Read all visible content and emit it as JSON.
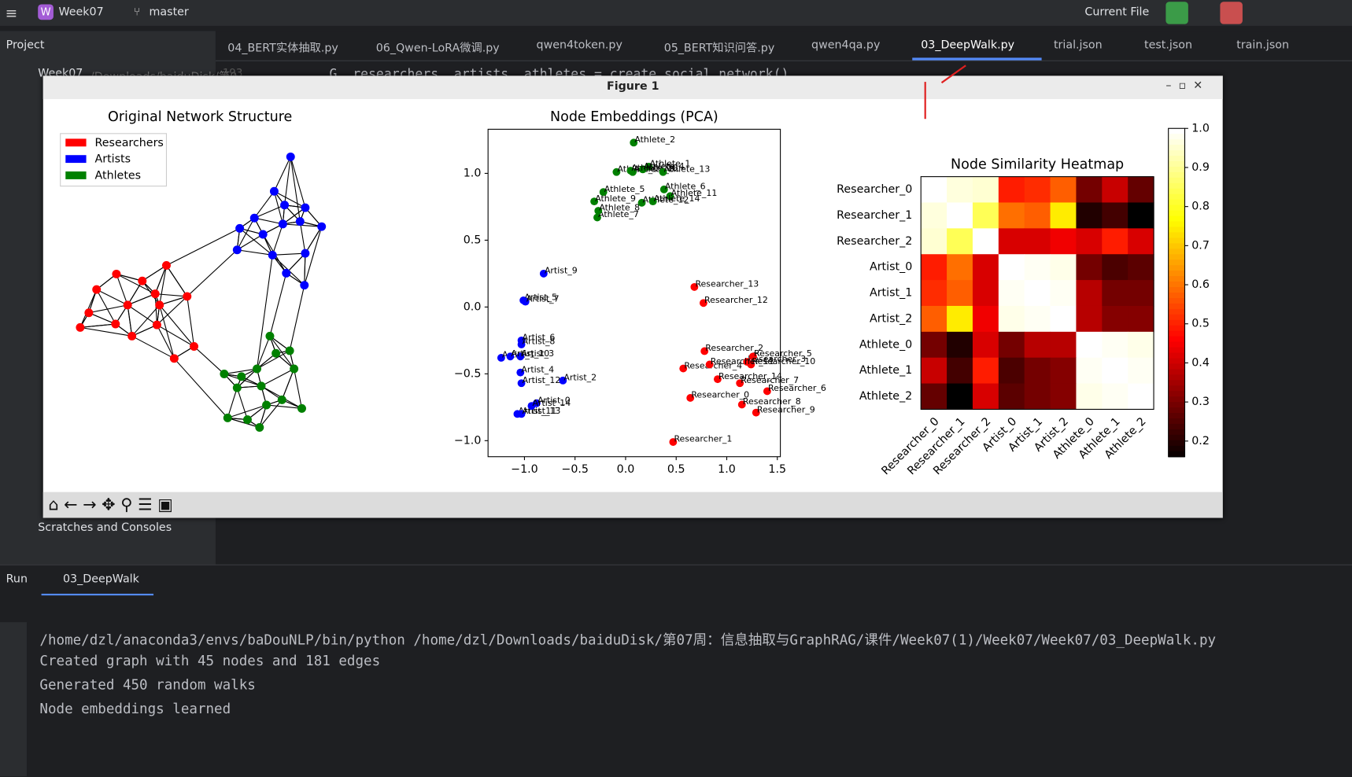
{
  "toolbar": {
    "project": "Week07",
    "branch": "master",
    "run_config": "Current File"
  },
  "tabs": [
    "04_BERT实体抽取.py",
    "06_Qwen-LoRA微调.py",
    "qwen4token.py",
    "05_BERT知识问答.py",
    "qwen4qa.py",
    "03_DeepWalk.py",
    "trial.json",
    "test.json",
    "train.json"
  ],
  "project_panel": {
    "title": "Project",
    "root": "Week07",
    "root_path": "~/Downloads/baiduDisk/第0",
    "scratches": "Scratches and Consoles"
  },
  "editor": {
    "line_number": "193",
    "code": "G, researchers, artists, athletes = create_social_network()"
  },
  "figure_window": {
    "title": "Figure 1"
  },
  "run_panel": {
    "title": "Run",
    "tab": "03_DeepWalk",
    "lines": [
      "/home/dzl/anaconda3/envs/baDouNLP/bin/python /home/dzl/Downloads/baiduDisk/第07周：信息抽取与GraphRAG/课件/Week07(1)/Week07/Week07/03_DeepWalk.py",
      "Created graph with 45 nodes and 181 edges",
      "Generated 450 random walks",
      "Node embeddings learned"
    ]
  },
  "chart_data": [
    {
      "type": "network",
      "title": "Original Network Structure",
      "series": [
        {
          "name": "Researchers",
          "color": "#ff0000"
        },
        {
          "name": "Artists",
          "color": "#0000ff"
        },
        {
          "name": "Athletes",
          "color": "#008000"
        }
      ]
    },
    {
      "type": "scatter",
      "title": "Node Embeddings (PCA)",
      "xlim": [
        -1.36,
        1.53
      ],
      "ylim": [
        -1.12,
        1.33
      ],
      "xticks": [
        {
          "value": -1,
          "label": "−1.0"
        },
        {
          "value": -0.5,
          "label": "−0.5"
        },
        {
          "value": 0,
          "label": "0.0"
        },
        {
          "value": 0.5,
          "label": "0.5"
        },
        {
          "value": 1,
          "label": "1.0"
        },
        {
          "value": 1.5,
          "label": "1.5"
        }
      ],
      "yticks": [
        {
          "value": -1,
          "label": "−1.0"
        },
        {
          "value": -0.5,
          "label": "−0.5"
        },
        {
          "value": 0,
          "label": "0.0"
        },
        {
          "value": 0.5,
          "label": "0.5"
        },
        {
          "value": 1,
          "label": "1.0"
        }
      ],
      "series": [
        {
          "name": "Researchers",
          "color": "#ff0000",
          "labels": [
            "Researcher_0",
            "Researcher_1",
            "Researcher_2",
            "Researcher_3",
            "Researcher_4",
            "Researcher_5",
            "Researcher_6",
            "Researcher_7",
            "Researcher_8",
            "Researcher_9",
            "Researcher_10",
            "Researcher_11",
            "Researcher_12",
            "Researcher_13",
            "Researcher_14"
          ],
          "x": [
            0.64,
            0.47,
            0.78,
            1.2,
            0.57,
            1.26,
            1.4,
            1.13,
            1.15,
            1.29,
            1.24,
            0.83,
            0.77,
            0.68,
            0.91
          ],
          "y": [
            -0.68,
            -1.01,
            -0.33,
            -0.41,
            -0.46,
            -0.37,
            -0.63,
            -0.57,
            -0.73,
            -0.79,
            -0.43,
            -0.43,
            0.03,
            0.15,
            -0.54
          ]
        },
        {
          "name": "Artists",
          "color": "#0000ff",
          "labels": [
            "Artist_0",
            "Artist_1",
            "Artist_2",
            "Artist_3",
            "Artist_4",
            "Artist_5",
            "Artist_6",
            "Artist_7",
            "Artist_8",
            "Artist_9",
            "Artist_10",
            "Artist_11",
            "Artist_12",
            "Artist_13",
            "Artist_14"
          ],
          "x": [
            -0.88,
            -1.23,
            -0.62,
            -1.04,
            -1.04,
            -1.01,
            -1.03,
            -0.99,
            -1.03,
            -0.81,
            -1.14,
            -1.07,
            -1.03,
            -1.03,
            -0.93
          ],
          "y": [
            -0.72,
            -0.38,
            -0.55,
            -0.37,
            -0.49,
            0.05,
            -0.25,
            0.04,
            -0.28,
            0.25,
            -0.37,
            -0.8,
            -0.57,
            -0.8,
            -0.74
          ]
        },
        {
          "name": "Athletes",
          "color": "#008000",
          "labels": [
            "Athlete_0",
            "Athlete_1",
            "Athlete_2",
            "Athlete_3",
            "Athlete_4",
            "Athlete_5",
            "Athlete_6",
            "Athlete_7",
            "Athlete_8",
            "Athlete_9",
            "Athlete_10",
            "Athlete_11",
            "Athlete_12",
            "Athlete_13",
            "Athlete_14"
          ],
          "x": [
            -0.09,
            0.23,
            0.08,
            0.07,
            0.17,
            -0.22,
            0.38,
            -0.28,
            -0.27,
            -0.31,
            0.05,
            0.44,
            0.16,
            0.37,
            0.27
          ],
          "y": [
            1.01,
            1.05,
            1.23,
            1.01,
            1.03,
            0.86,
            0.88,
            0.67,
            0.72,
            0.79,
            1.02,
            0.83,
            0.78,
            1.01,
            0.79
          ]
        }
      ]
    },
    {
      "type": "heatmap",
      "title": "Node Similarity Heatmap",
      "categories": [
        "Researcher_0",
        "Researcher_1",
        "Researcher_2",
        "Artist_0",
        "Artist_1",
        "Artist_2",
        "Athlete_0",
        "Athlete_1",
        "Athlete_2"
      ],
      "colormap": "hot",
      "clim": [
        0.16,
        1.0
      ],
      "cticks": [
        0.2,
        0.3,
        0.4,
        0.5,
        0.6,
        0.7,
        0.8,
        0.9,
        {
          "value": 1,
          "label": "1.0"
        }
      ],
      "values": [
        [
          1.0,
          0.97,
          0.96,
          0.5,
          0.52,
          0.58,
          0.3,
          0.4,
          0.28
        ],
        [
          0.97,
          1.0,
          0.85,
          0.6,
          0.58,
          0.75,
          0.2,
          0.24,
          0.16
        ],
        [
          0.96,
          0.85,
          1.0,
          0.42,
          0.42,
          0.45,
          0.42,
          0.5,
          0.42
        ],
        [
          0.5,
          0.6,
          0.42,
          1.0,
          0.99,
          0.98,
          0.3,
          0.25,
          0.27
        ],
        [
          0.52,
          0.58,
          0.42,
          0.99,
          1.0,
          0.99,
          0.38,
          0.3,
          0.3
        ],
        [
          0.58,
          0.75,
          0.45,
          0.98,
          0.99,
          1.0,
          0.38,
          0.32,
          0.32
        ],
        [
          0.3,
          0.2,
          0.42,
          0.3,
          0.38,
          0.38,
          1.0,
          0.99,
          0.98
        ],
        [
          0.4,
          0.24,
          0.5,
          0.25,
          0.3,
          0.32,
          0.99,
          1.0,
          0.99
        ],
        [
          0.28,
          0.16,
          0.42,
          0.27,
          0.3,
          0.32,
          0.98,
          0.99,
          1.0
        ]
      ]
    }
  ]
}
